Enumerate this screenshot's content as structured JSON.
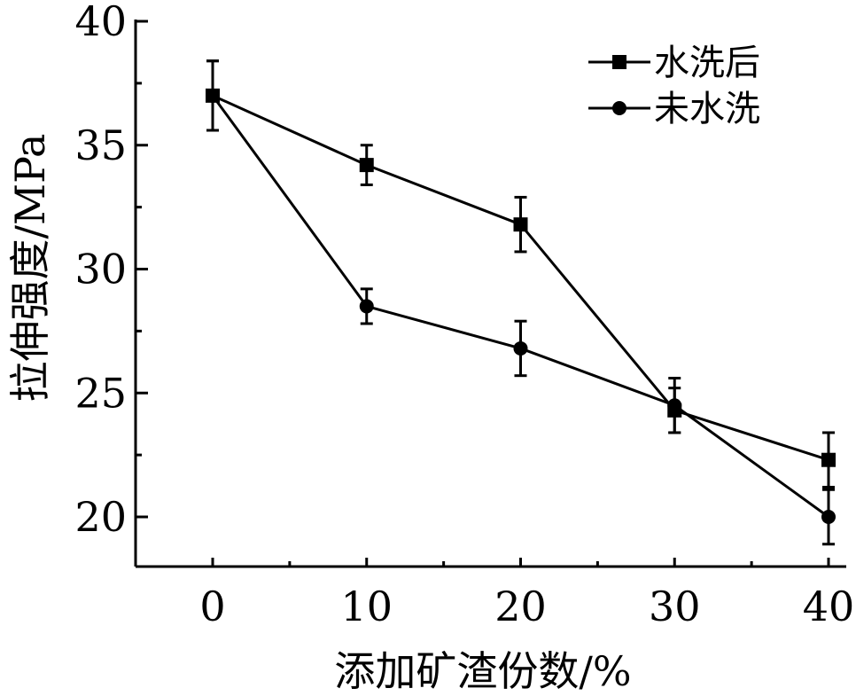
{
  "chart_data": {
    "type": "line",
    "xlabel": "添加矿渣份数/%",
    "ylabel": "拉伸强度/MPa",
    "x": [
      0,
      10,
      20,
      30,
      40
    ],
    "x_tick_labels": [
      "0",
      "10",
      "20",
      "30",
      "40"
    ],
    "y_tick_labels": [
      "20",
      "25",
      "30",
      "35",
      "40"
    ],
    "xlim": [
      -5,
      41
    ],
    "ylim": [
      18,
      40
    ],
    "grid": false,
    "legend_position": "top-right",
    "series": [
      {
        "name": "水洗后",
        "marker": "square",
        "values": [
          37.0,
          34.2,
          31.8,
          24.3,
          22.3
        ],
        "errors": [
          1.4,
          0.8,
          1.1,
          0.9,
          1.1
        ]
      },
      {
        "name": "未水洗",
        "marker": "circle",
        "values": [
          37.0,
          28.5,
          26.8,
          24.5,
          20.0
        ],
        "errors": [
          1.4,
          0.7,
          1.1,
          1.1,
          1.1
        ]
      }
    ]
  }
}
